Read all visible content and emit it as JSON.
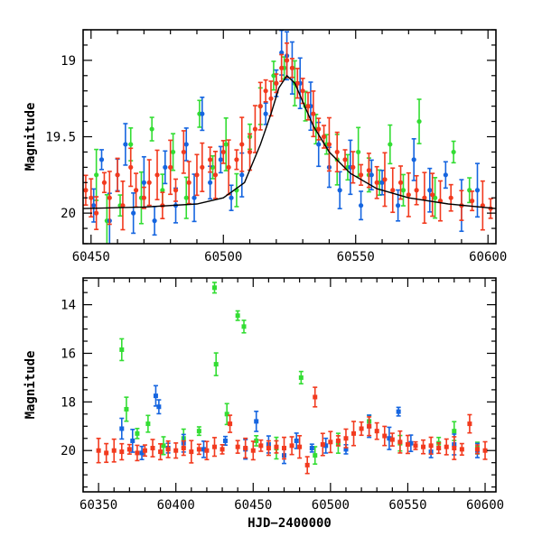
{
  "chart_data": [
    {
      "type": "scatter",
      "panel": "top",
      "title": "",
      "xlabel": "",
      "ylabel": "Magnitude",
      "xlim": [
        60447,
        60603
      ],
      "ylim": [
        20.2,
        18.8
      ],
      "y_inverted": true,
      "xticks": [
        60450,
        60500,
        60550,
        60600
      ],
      "xtick_labels": [
        "60450",
        "60500",
        "60550",
        "60600"
      ],
      "yticks": [
        19,
        19.5,
        20
      ],
      "ytick_labels": [
        "19",
        "19.5",
        "20"
      ],
      "grid": false,
      "legend": "none",
      "colors": {
        "g": "#33dd33",
        "o": "#1565e0",
        "c": "#f23a1e",
        "model": "#000000"
      },
      "series": [
        {
          "color": "#33dd33",
          "marker": "circle",
          "points": [
            [
              60452,
              19.75
            ],
            [
              60456,
              20.05
            ],
            [
              60461,
              19.95
            ],
            [
              60465,
              19.55
            ],
            [
              60469,
              19.9
            ],
            [
              60473,
              19.45
            ],
            [
              60477,
              19.85
            ],
            [
              60481,
              19.6
            ],
            [
              60486,
              19.9
            ],
            [
              60491,
              19.35
            ],
            [
              60496,
              19.7
            ],
            [
              60501,
              19.55
            ],
            [
              60505,
              19.85
            ],
            [
              60510,
              19.5
            ],
            [
              60514,
              19.3
            ],
            [
              60519,
              19.1
            ],
            [
              60523,
              19.05
            ],
            [
              60527,
              19.15
            ],
            [
              60531,
              19.3
            ],
            [
              60535,
              19.45
            ],
            [
              60539,
              19.55
            ],
            [
              60543,
              19.65
            ],
            [
              60547,
              19.7
            ],
            [
              60551,
              19.6
            ],
            [
              60555,
              19.75
            ],
            [
              60559,
              19.8
            ],
            [
              60563,
              19.55
            ],
            [
              60568,
              19.85
            ],
            [
              60574,
              19.4
            ],
            [
              60580,
              19.9
            ],
            [
              60587,
              19.6
            ],
            [
              60593,
              19.85
            ]
          ]
        },
        {
          "color": "#1565e0",
          "marker": "circle",
          "points": [
            [
              60451,
              19.95
            ],
            [
              60454,
              19.65
            ],
            [
              60457,
              20.05
            ],
            [
              60460,
              19.75
            ],
            [
              60463,
              19.55
            ],
            [
              60466,
              20.0
            ],
            [
              60470,
              19.8
            ],
            [
              60474,
              20.05
            ],
            [
              60478,
              19.7
            ],
            [
              60482,
              19.95
            ],
            [
              60486,
              19.55
            ],
            [
              60489,
              19.9
            ],
            [
              60492,
              19.35
            ],
            [
              60495,
              19.8
            ],
            [
              60499,
              19.65
            ],
            [
              60503,
              19.9
            ],
            [
              60507,
              19.75
            ],
            [
              60516,
              19.35
            ],
            [
              60520,
              19.15
            ],
            [
              60522,
              18.95
            ],
            [
              60524,
              18.97
            ],
            [
              60526,
              19.05
            ],
            [
              60529,
              19.15
            ],
            [
              60533,
              19.3
            ],
            [
              60536,
              19.55
            ],
            [
              60540,
              19.7
            ],
            [
              60544,
              19.85
            ],
            [
              60548,
              19.7
            ],
            [
              60552,
              19.95
            ],
            [
              60556,
              19.75
            ],
            [
              60560,
              19.8
            ],
            [
              60566,
              19.95
            ],
            [
              60572,
              19.65
            ],
            [
              60578,
              19.85
            ],
            [
              60584,
              19.75
            ],
            [
              60590,
              19.95
            ],
            [
              60596,
              19.85
            ]
          ]
        },
        {
          "color": "#f23a1e",
          "marker": "circle",
          "points": [
            [
              60448,
              19.85
            ],
            [
              60450,
              19.9
            ],
            [
              60452,
              20.0
            ],
            [
              60455,
              19.8
            ],
            [
              60457,
              19.9
            ],
            [
              60460,
              19.75
            ],
            [
              60462,
              19.95
            ],
            [
              60465,
              19.7
            ],
            [
              60467,
              19.85
            ],
            [
              60470,
              19.9
            ],
            [
              60472,
              19.8
            ],
            [
              60475,
              19.75
            ],
            [
              60477,
              19.95
            ],
            [
              60480,
              19.7
            ],
            [
              60482,
              19.85
            ],
            [
              60485,
              19.6
            ],
            [
              60487,
              19.8
            ],
            [
              60490,
              19.75
            ],
            [
              60492,
              19.7
            ],
            [
              60495,
              19.65
            ],
            [
              60497,
              19.75
            ],
            [
              60500,
              19.6
            ],
            [
              60502,
              19.7
            ],
            [
              60505,
              19.65
            ],
            [
              60507,
              19.55
            ],
            [
              60510,
              19.6
            ],
            [
              60512,
              19.45
            ],
            [
              60514,
              19.3
            ],
            [
              60516,
              19.2
            ],
            [
              60518,
              19.25
            ],
            [
              60520,
              19.15
            ],
            [
              60522,
              19.05
            ],
            [
              60524,
              19.0
            ],
            [
              60526,
              19.05
            ],
            [
              60528,
              19.15
            ],
            [
              60530,
              19.2
            ],
            [
              60532,
              19.3
            ],
            [
              60534,
              19.35
            ],
            [
              60536,
              19.45
            ],
            [
              60538,
              19.5
            ],
            [
              60540,
              19.55
            ],
            [
              60543,
              19.6
            ],
            [
              60546,
              19.65
            ],
            [
              60549,
              19.7
            ],
            [
              60552,
              19.75
            ],
            [
              60555,
              19.72
            ],
            [
              60558,
              19.8
            ],
            [
              60561,
              19.78
            ],
            [
              60564,
              19.85
            ],
            [
              60567,
              19.8
            ],
            [
              60570,
              19.88
            ],
            [
              60573,
              19.85
            ],
            [
              60576,
              19.9
            ],
            [
              60579,
              19.88
            ],
            [
              60582,
              19.92
            ],
            [
              60586,
              19.9
            ],
            [
              60590,
              19.95
            ],
            [
              60594,
              19.92
            ],
            [
              60598,
              19.95
            ],
            [
              60601,
              19.97
            ]
          ]
        }
      ],
      "model_curve": [
        [
          60447,
          19.97
        ],
        [
          60470,
          19.96
        ],
        [
          60490,
          19.94
        ],
        [
          60500,
          19.9
        ],
        [
          60508,
          19.8
        ],
        [
          60514,
          19.55
        ],
        [
          60518,
          19.35
        ],
        [
          60521,
          19.18
        ],
        [
          60524,
          19.1
        ],
        [
          60527,
          19.15
        ],
        [
          60530,
          19.27
        ],
        [
          60534,
          19.43
        ],
        [
          60540,
          19.6
        ],
        [
          60548,
          19.74
        ],
        [
          60558,
          19.84
        ],
        [
          60570,
          19.9
        ],
        [
          60585,
          19.94
        ],
        [
          60603,
          19.97
        ]
      ]
    },
    {
      "type": "scatter",
      "panel": "bottom",
      "title": "",
      "xlabel": "HJD−2400000",
      "ylabel": "Magnitude",
      "xlim": [
        60340,
        60607
      ],
      "ylim": [
        21.7,
        12.9
      ],
      "y_inverted": true,
      "xticks": [
        60350,
        60400,
        60450,
        60500,
        60550,
        60600
      ],
      "xtick_labels": [
        "60350",
        "60400",
        "60450",
        "60500",
        "60550",
        "60600"
      ],
      "yticks": [
        14,
        16,
        18,
        20
      ],
      "ytick_labels": [
        "14",
        "16",
        "18",
        "20"
      ],
      "grid": false,
      "legend": "none",
      "series": [
        {
          "color": "#33dd33",
          "marker": "square",
          "points": [
            [
              60365,
              15.85
            ],
            [
              60368,
              18.3
            ],
            [
              60375,
              19.3
            ],
            [
              60382,
              18.9
            ],
            [
              60392,
              19.8
            ],
            [
              60405,
              19.5
            ],
            [
              60415,
              19.2
            ],
            [
              60425,
              13.3
            ],
            [
              60426,
              16.45
            ],
            [
              60433,
              18.5
            ],
            [
              60440,
              14.45
            ],
            [
              60444,
              14.9
            ],
            [
              60452,
              19.6
            ],
            [
              60465,
              19.9
            ],
            [
              60481,
              17.0
            ],
            [
              60490,
              20.2
            ],
            [
              60505,
              19.7
            ],
            [
              60525,
              18.8
            ],
            [
              60545,
              19.7
            ],
            [
              60570,
              19.7
            ],
            [
              60580,
              19.2
            ],
            [
              60595,
              19.9
            ]
          ]
        },
        {
          "color": "#1565e0",
          "marker": "square",
          "points": [
            [
              60365,
              19.1
            ],
            [
              60372,
              19.6
            ],
            [
              60378,
              20.1
            ],
            [
              60387,
              17.75
            ],
            [
              60389,
              18.2
            ],
            [
              60395,
              19.9
            ],
            [
              60405,
              19.7
            ],
            [
              60418,
              19.95
            ],
            [
              60432,
              19.6
            ],
            [
              60445,
              19.95
            ],
            [
              60452,
              18.8
            ],
            [
              60460,
              19.75
            ],
            [
              60470,
              20.2
            ],
            [
              60478,
              19.6
            ],
            [
              60488,
              19.9
            ],
            [
              60497,
              19.8
            ],
            [
              60510,
              19.95
            ],
            [
              60525,
              19.0
            ],
            [
              60538,
              19.5
            ],
            [
              60544,
              18.4
            ],
            [
              60552,
              19.7
            ],
            [
              60565,
              20.05
            ],
            [
              60580,
              19.75
            ],
            [
              60595,
              20.0
            ]
          ]
        },
        {
          "color": "#f23a1e",
          "marker": "square",
          "points": [
            [
              60350,
              20.0
            ],
            [
              60355,
              20.1
            ],
            [
              60360,
              20.0
            ],
            [
              60365,
              20.05
            ],
            [
              60370,
              19.95
            ],
            [
              60375,
              20.1
            ],
            [
              60380,
              20.0
            ],
            [
              60385,
              19.9
            ],
            [
              60390,
              20.05
            ],
            [
              60395,
              19.95
            ],
            [
              60400,
              20.0
            ],
            [
              60405,
              19.9
            ],
            [
              60410,
              20.05
            ],
            [
              60415,
              19.95
            ],
            [
              60420,
              20.0
            ],
            [
              60425,
              19.85
            ],
            [
              60430,
              19.95
            ],
            [
              60435,
              18.9
            ],
            [
              60440,
              19.85
            ],
            [
              60445,
              19.9
            ],
            [
              60450,
              20.0
            ],
            [
              60455,
              19.8
            ],
            [
              60460,
              19.9
            ],
            [
              60465,
              19.85
            ],
            [
              60470,
              19.9
            ],
            [
              60475,
              19.8
            ],
            [
              60480,
              19.85
            ],
            [
              60485,
              20.6
            ],
            [
              60490,
              17.8
            ],
            [
              60495,
              19.75
            ],
            [
              60500,
              19.65
            ],
            [
              60505,
              19.6
            ],
            [
              60510,
              19.5
            ],
            [
              60515,
              19.3
            ],
            [
              60520,
              19.1
            ],
            [
              60525,
              19.0
            ],
            [
              60530,
              19.2
            ],
            [
              60535,
              19.4
            ],
            [
              60540,
              19.55
            ],
            [
              60545,
              19.65
            ],
            [
              60550,
              19.75
            ],
            [
              60555,
              19.8
            ],
            [
              60560,
              19.85
            ],
            [
              60565,
              19.8
            ],
            [
              60570,
              19.9
            ],
            [
              60575,
              19.85
            ],
            [
              60580,
              19.9
            ],
            [
              60585,
              19.95
            ],
            [
              60590,
              18.9
            ],
            [
              60595,
              19.95
            ],
            [
              60600,
              20.0
            ]
          ]
        }
      ]
    }
  ]
}
